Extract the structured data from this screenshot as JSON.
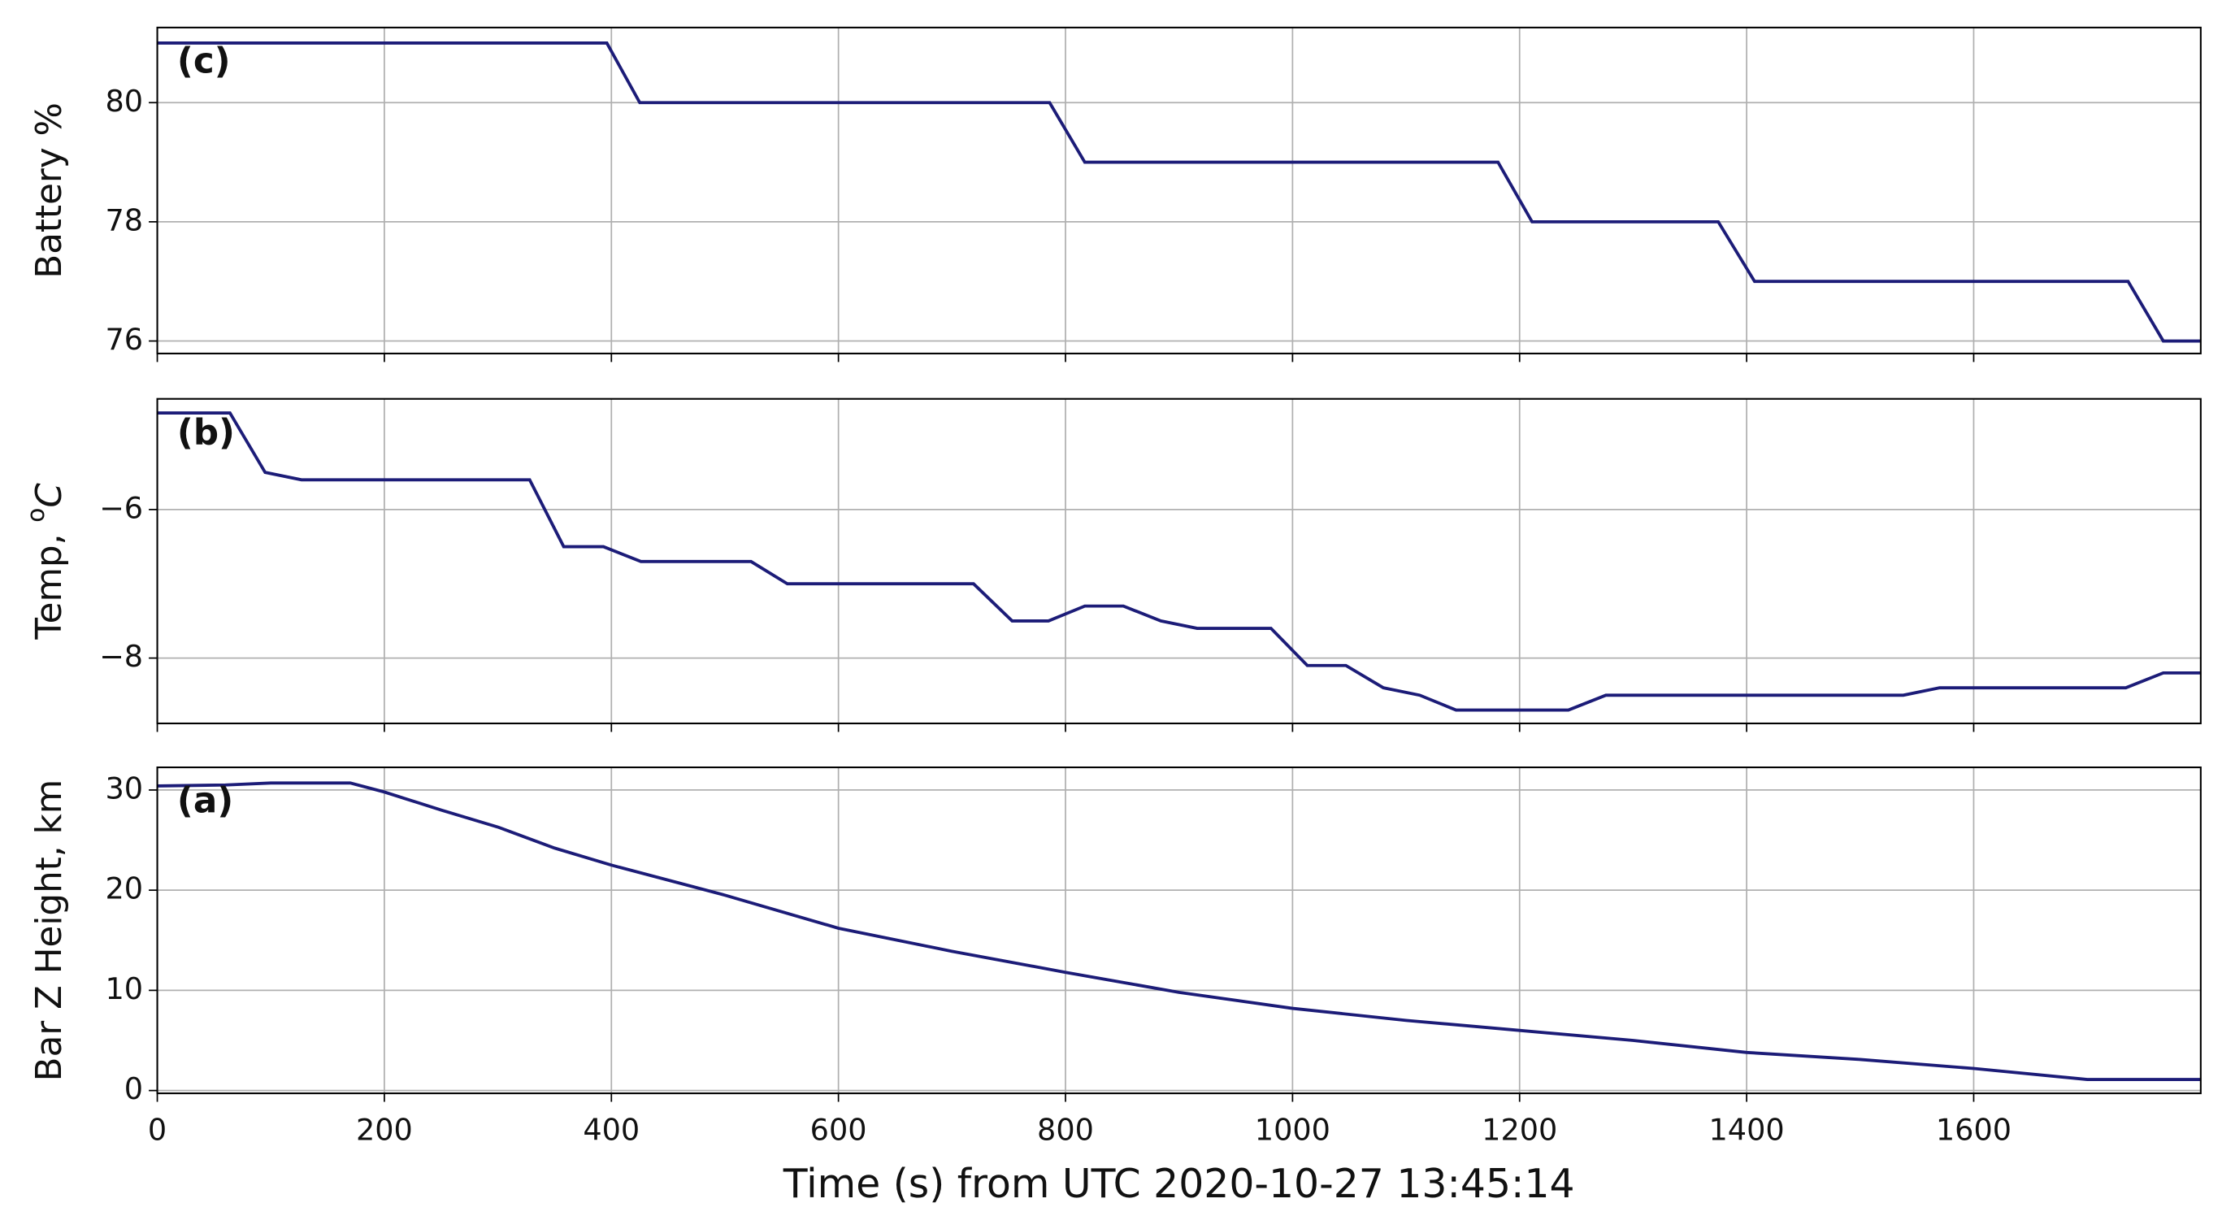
{
  "chart_data": [
    {
      "type": "line",
      "panel_label": "(c)",
      "y_label": {
        "text": "Battery %"
      },
      "x": [
        0,
        396,
        425,
        786,
        817,
        1181,
        1211,
        1375,
        1407,
        1736,
        1767,
        1800
      ],
      "series": [
        {
          "color": "#1c1c78",
          "values": [
            81,
            81,
            80,
            80,
            79,
            79,
            78,
            78,
            77,
            77,
            76,
            76
          ]
        }
      ],
      "xlim": [
        0,
        1800
      ],
      "xticks": [
        0,
        200,
        400,
        600,
        800,
        1000,
        1200,
        1400,
        1600
      ],
      "ylim": [
        75.79,
        81.26
      ],
      "yticks": [
        76,
        78,
        80
      ],
      "grid": true
    },
    {
      "type": "line",
      "panel_label": "(b)",
      "y_label": {
        "text": "Temp, ",
        "sup": "o",
        "unit": "C"
      },
      "x": [
        0,
        64,
        95,
        127,
        328,
        358,
        393,
        426,
        523,
        555,
        719,
        753,
        785,
        817,
        851,
        884,
        916,
        981,
        1013,
        1047,
        1080,
        1112,
        1144,
        1243,
        1276,
        1538,
        1570,
        1734,
        1767,
        1800
      ],
      "series": [
        {
          "color": "#1c1c78",
          "values": [
            -4.7,
            -4.7,
            -5.5,
            -5.6,
            -5.6,
            -6.5,
            -6.5,
            -6.7,
            -6.7,
            -7.0,
            -7.0,
            -7.5,
            -7.5,
            -7.3,
            -7.3,
            -7.5,
            -7.6,
            -7.6,
            -8.1,
            -8.1,
            -8.4,
            -8.5,
            -8.7,
            -8.7,
            -8.5,
            -8.5,
            -8.4,
            -8.4,
            -8.2,
            -8.2
          ]
        }
      ],
      "xlim": [
        0,
        1800
      ],
      "xticks": [
        0,
        200,
        400,
        600,
        800,
        1000,
        1200,
        1400,
        1600
      ],
      "ylim": [
        -8.88,
        -4.51
      ],
      "yticks": [
        {
          "value": -6,
          "label": "−6"
        },
        {
          "value": -8,
          "label": "−8"
        }
      ],
      "grid": true
    },
    {
      "type": "line",
      "panel_label": "(a)",
      "y_label": {
        "text": "Bar Z Height, km"
      },
      "x_label": "Time (s) from UTC 2020-10-27 13:45:14",
      "x": [
        0,
        60,
        100,
        170,
        200,
        250,
        300,
        350,
        400,
        500,
        600,
        700,
        800,
        900,
        1000,
        1100,
        1200,
        1300,
        1400,
        1500,
        1600,
        1700,
        1800
      ],
      "series": [
        {
          "color": "#1c1c78",
          "values": [
            30.4,
            30.5,
            30.7,
            30.7,
            29.8,
            28.0,
            26.3,
            24.2,
            22.5,
            19.5,
            16.2,
            13.9,
            11.8,
            9.8,
            8.2,
            7.0,
            6.0,
            5.0,
            3.8,
            3.1,
            2.2,
            1.1,
            1.1
          ]
        }
      ],
      "xlim": [
        0,
        1800
      ],
      "xticks": [
        0,
        200,
        400,
        600,
        800,
        1000,
        1200,
        1400,
        1600
      ],
      "ylim": [
        -0.28,
        32.26
      ],
      "yticks": [
        0,
        10,
        20,
        30
      ],
      "grid": true,
      "show_xtick_labels": true
    }
  ]
}
